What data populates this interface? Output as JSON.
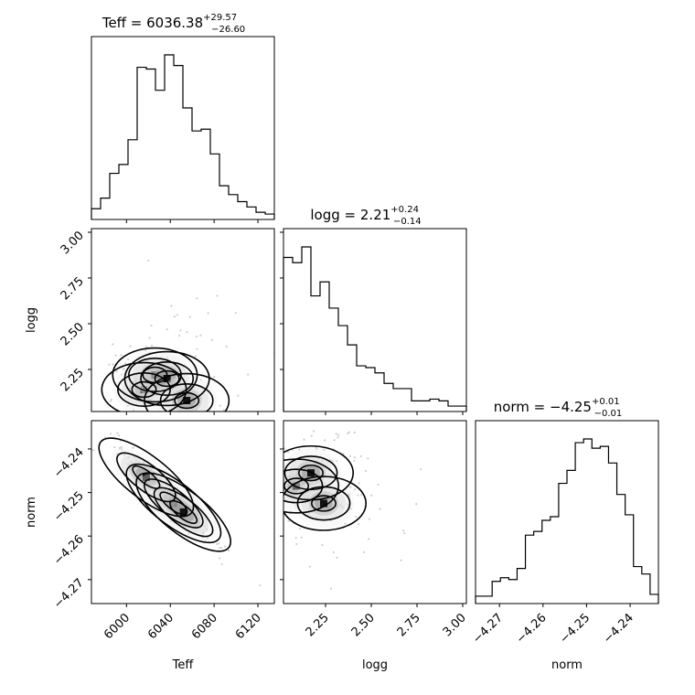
{
  "chart_data": {
    "type": "corner",
    "parameters": [
      {
        "name": "Teff",
        "xlabel": "Teff",
        "ylabel": "",
        "title": {
          "base": "Teff = 6036.38",
          "sup": "+29.57",
          "sub": "−26.60"
        },
        "range": [
          5968,
          6135
        ],
        "ticks": [
          6000,
          6040,
          6080,
          6120
        ],
        "tick_labels": [
          "6000",
          "6040",
          "6080",
          "6120"
        ]
      },
      {
        "name": "logg",
        "xlabel": "logg",
        "ylabel": "logg",
        "title": {
          "base": "logg = 2.21",
          "sup": "+0.24",
          "sub": "−0.14"
        },
        "range": [
          2.02,
          3.02
        ],
        "ticks": [
          2.25,
          2.5,
          2.75,
          3.0
        ],
        "tick_labels": [
          "2.25",
          "2.50",
          "2.75",
          "3.00"
        ]
      },
      {
        "name": "norm",
        "xlabel": "norm",
        "ylabel": "norm",
        "title": {
          "base": "norm = −4.25",
          "sup": "+0.01",
          "sub": "−0.01"
        },
        "range": [
          -4.2755,
          -4.2335
        ],
        "ticks": [
          -4.27,
          -4.26,
          -4.25,
          -4.24
        ],
        "tick_labels": [
          "−4.27",
          "−4.26",
          "−4.25",
          "−4.24"
        ]
      }
    ],
    "histograms": [
      {
        "param": "Teff",
        "counts": [
          4,
          10,
          24,
          29,
          43,
          84,
          83,
          71,
          91,
          85,
          61,
          48,
          49,
          35,
          17,
          12,
          8,
          5,
          2,
          1
        ]
      },
      {
        "param": "logg",
        "counts": [
          86,
          83,
          92,
          64,
          72,
          57,
          47,
          36,
          24,
          23,
          20,
          14,
          11,
          11,
          4,
          4,
          5,
          4,
          1,
          1
        ]
      },
      {
        "param": "norm",
        "counts": [
          2,
          2,
          10,
          12,
          11,
          17,
          35,
          37,
          43,
          45,
          63,
          70,
          85,
          87,
          82,
          83,
          74,
          57,
          46,
          18,
          14,
          3
        ]
      }
    ],
    "joint_peaks": [
      {
        "x": "Teff",
        "y": "logg",
        "peaks": [
          [
            6016,
            2.14
          ],
          [
            6026,
            2.22
          ],
          [
            6037,
            2.2
          ],
          [
            6055,
            2.08
          ]
        ]
      },
      {
        "x": "Teff",
        "y": "norm",
        "peaks": [
          [
            6018,
            -4.2465
          ],
          [
            6043,
            -4.2525
          ],
          [
            6052,
            -4.2545
          ]
        ]
      },
      {
        "x": "logg",
        "y": "norm",
        "peaks": [
          [
            2.09,
            -4.2485
          ],
          [
            2.17,
            -4.2455
          ],
          [
            2.24,
            -4.2525
          ]
        ]
      }
    ]
  }
}
